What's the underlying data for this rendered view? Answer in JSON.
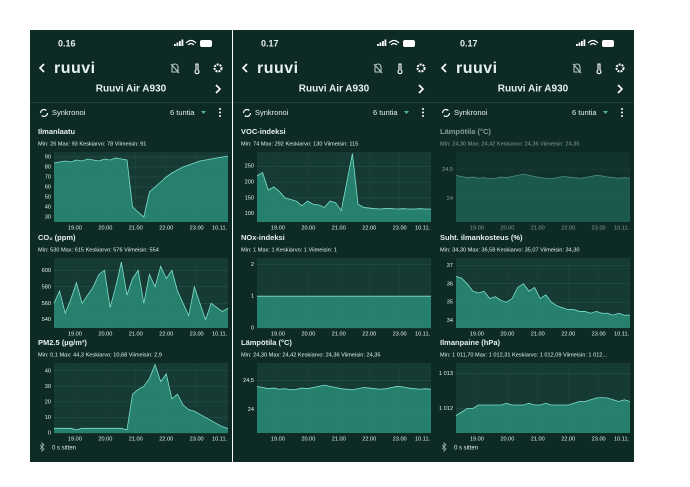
{
  "screens": [
    {
      "status_time": "0.16",
      "logo": "ruuvi",
      "device": "Ruuvi Air A930",
      "sync": "Synkronoi",
      "period": "6 tuntia",
      "footer": "0 s sitten",
      "charts": [
        {
          "type": "area",
          "title": "Ilmanlaatu",
          "stats": "Min: 26 Max: 93 Keskiarvo: 78 Viimeisin: 91",
          "x_labels": [
            "19.00",
            "20.00",
            "21.00",
            "22.00",
            "23.00",
            "10.11."
          ],
          "ylim": [
            25,
            95
          ],
          "yticks": [
            30,
            40,
            50,
            60,
            70,
            80,
            90
          ],
          "values": [
            84,
            85,
            86,
            85,
            87,
            86,
            88,
            87,
            86,
            88,
            87,
            89,
            88,
            87,
            40,
            35,
            30,
            55,
            60,
            65,
            70,
            74,
            77,
            80,
            82,
            84,
            86,
            87,
            88,
            89,
            90,
            91
          ]
        },
        {
          "type": "area",
          "title": "CO₂ (ppm)",
          "stats": "Min: 530 Max: 615 Keskiarvo: 576 Viimeisin: 554",
          "x_labels": [
            "19.00",
            "20.00",
            "21.00",
            "22.00",
            "23.00",
            "10.11."
          ],
          "ylim": [
            530,
            615
          ],
          "yticks": [
            540,
            560,
            580,
            600
          ],
          "values": [
            560,
            575,
            548,
            565,
            585,
            560,
            570,
            580,
            595,
            600,
            555,
            580,
            610,
            570,
            590,
            600,
            560,
            595,
            580,
            605,
            590,
            600,
            575,
            560,
            545,
            580,
            560,
            540,
            560,
            555,
            550,
            554
          ]
        },
        {
          "type": "area",
          "title": "PM2.5 (µg/m³)",
          "stats": "Min: 0,1 Max: 44,3 Keskiarvo: 10,68 Viimeisin: 2,9",
          "x_labels": [
            "19.00",
            "20.00",
            "21.00",
            "22.00",
            "23.00",
            "10.11."
          ],
          "ylim": [
            0,
            45
          ],
          "yticks": [
            0,
            10,
            20,
            30,
            40
          ],
          "values": [
            3,
            3,
            3,
            3,
            2,
            3,
            3,
            3,
            3,
            3,
            3,
            3,
            3,
            2,
            25,
            28,
            30,
            35,
            44,
            33,
            38,
            22,
            25,
            18,
            15,
            14,
            12,
            10,
            8,
            6,
            4,
            2.9
          ]
        }
      ]
    },
    {
      "status_time": "0.17",
      "logo": "ruuvi",
      "device": "Ruuvi Air A930",
      "sync": "Synkronoi",
      "period": "6 tuntia",
      "charts": [
        {
          "type": "area",
          "title": "VOC-indeksi",
          "stats": "Min: 74 Max: 292 Keskiarvo: 130 Viimeisin: 115",
          "x_labels": [
            "19.00",
            "20.00",
            "21.00",
            "22.00",
            "23.00",
            "10.11."
          ],
          "ylim": [
            74,
            295
          ],
          "yticks": [
            100,
            150,
            200,
            250
          ],
          "values": [
            220,
            230,
            175,
            185,
            170,
            150,
            145,
            140,
            125,
            140,
            130,
            128,
            120,
            140,
            135,
            110,
            200,
            290,
            130,
            120,
            118,
            116,
            115,
            117,
            116,
            115,
            116,
            115,
            115,
            116,
            115,
            115
          ]
        },
        {
          "type": "area",
          "title": "NOx-indeksi",
          "stats": "Min: 1 Max: 1 Keskiarvo: 1 Viimeisin: 1",
          "x_labels": [
            "19.00",
            "20.00",
            "21.00",
            "22.00",
            "23.00",
            "10.11."
          ],
          "ylim": [
            0,
            2.2
          ],
          "yticks": [
            0,
            1,
            2
          ],
          "values": [
            1,
            1,
            1,
            1,
            1,
            1,
            1,
            1,
            1,
            1,
            1,
            1,
            1,
            1,
            1,
            1,
            1,
            1,
            1,
            1,
            1,
            1,
            1,
            1,
            1,
            1,
            1,
            1,
            1,
            1,
            1,
            1
          ]
        },
        {
          "type": "area",
          "title": "Lämpötila (°C)",
          "stats": "Min: 24,30 Max: 24,42 Keskiarvo: 24,36 Viimeisin: 24,35",
          "x_labels": [
            "19.00",
            "20.00",
            "21.00",
            "22.00",
            "23.00",
            "10.11."
          ],
          "ylim": [
            23.6,
            24.8
          ],
          "yticks": [
            24,
            {
              "value": 24.5,
              "label": "24,5"
            }
          ],
          "values": [
            24.4,
            24.38,
            24.36,
            24.37,
            24.35,
            24.36,
            24.34,
            24.35,
            24.37,
            24.36,
            24.38,
            24.4,
            24.42,
            24.4,
            24.38,
            24.36,
            24.35,
            24.34,
            24.36,
            24.38,
            24.37,
            24.36,
            24.35,
            24.36,
            24.38,
            24.4,
            24.39,
            24.37,
            24.36,
            24.35,
            24.36,
            24.35
          ]
        }
      ]
    },
    {
      "status_time": "0.17",
      "logo": "ruuvi",
      "device": "Ruuvi Air A930",
      "sync": "Synkronoi",
      "period": "6 tuntia",
      "footer": "0 s sitten",
      "charts": [
        {
          "type": "area",
          "title": "Lämpötila (°C)",
          "stats": "Min: 24,30 Max: 24,42 Keskiarvo: 24,36 Viimeisin: 24,35",
          "x_labels": [
            "19.00",
            "20.00",
            "21.00",
            "22.00",
            "23.00",
            "10.11."
          ],
          "ylim": [
            23.6,
            24.8
          ],
          "yticks": [
            24,
            {
              "value": 24.5,
              "label": "24,5"
            }
          ],
          "values": [
            24.4,
            24.38,
            24.36,
            24.37,
            24.35,
            24.36,
            24.34,
            24.35,
            24.37,
            24.36,
            24.38,
            24.4,
            24.42,
            24.4,
            24.38,
            24.36,
            24.35,
            24.34,
            24.36,
            24.38,
            24.37,
            24.36,
            24.35,
            24.36,
            24.38,
            24.4,
            24.39,
            24.37,
            24.36,
            24.35,
            24.36,
            24.35
          ]
        },
        {
          "type": "area",
          "title": "Suht. ilmankosteus (%)",
          "stats": "Min: 34,30 Max: 36,58 Keskiarvo: 35,07 Viimeisin: 34,30",
          "x_labels": [
            "19.00",
            "20.00",
            "21.00",
            "22.00",
            "23.00",
            "10.11."
          ],
          "ylim": [
            33.6,
            37.4
          ],
          "yticks": [
            34,
            35,
            36,
            37
          ],
          "values": [
            36.4,
            36.3,
            36.0,
            35.6,
            35.5,
            35.6,
            35.2,
            35.3,
            35.1,
            35.0,
            35.2,
            35.8,
            36.0,
            35.6,
            35.8,
            35.2,
            35.4,
            35.0,
            34.8,
            34.7,
            34.6,
            34.6,
            34.5,
            34.5,
            34.4,
            34.5,
            34.4,
            34.4,
            34.3,
            34.4,
            34.3,
            34.3
          ]
        },
        {
          "type": "area",
          "title": "Ilmanpaine (hPa)",
          "stats": "Min: 1 011,70 Max: 1 012,31 Keskiarvo: 1 012,09 Viimeisin: 1 012...",
          "x_labels": [
            "19.00",
            "20.00",
            "21.00",
            "22.00",
            "23.00",
            "10.11."
          ],
          "ylim": [
            1011.3,
            1013.3
          ],
          "yticks": [
            {
              "value": 1012,
              "label": "1 012"
            },
            {
              "value": 1013,
              "label": "1 013"
            }
          ],
          "values": [
            1011.8,
            1011.9,
            1012.0,
            1012.0,
            1012.1,
            1012.1,
            1012.1,
            1012.1,
            1012.1,
            1012.15,
            1012.1,
            1012.1,
            1012.1,
            1012.15,
            1012.1,
            1012.1,
            1012.15,
            1012.1,
            1012.1,
            1012.1,
            1012.1,
            1012.15,
            1012.2,
            1012.2,
            1012.25,
            1012.3,
            1012.31,
            1012.3,
            1012.25,
            1012.2,
            1012.25,
            1012.2
          ]
        }
      ]
    }
  ]
}
